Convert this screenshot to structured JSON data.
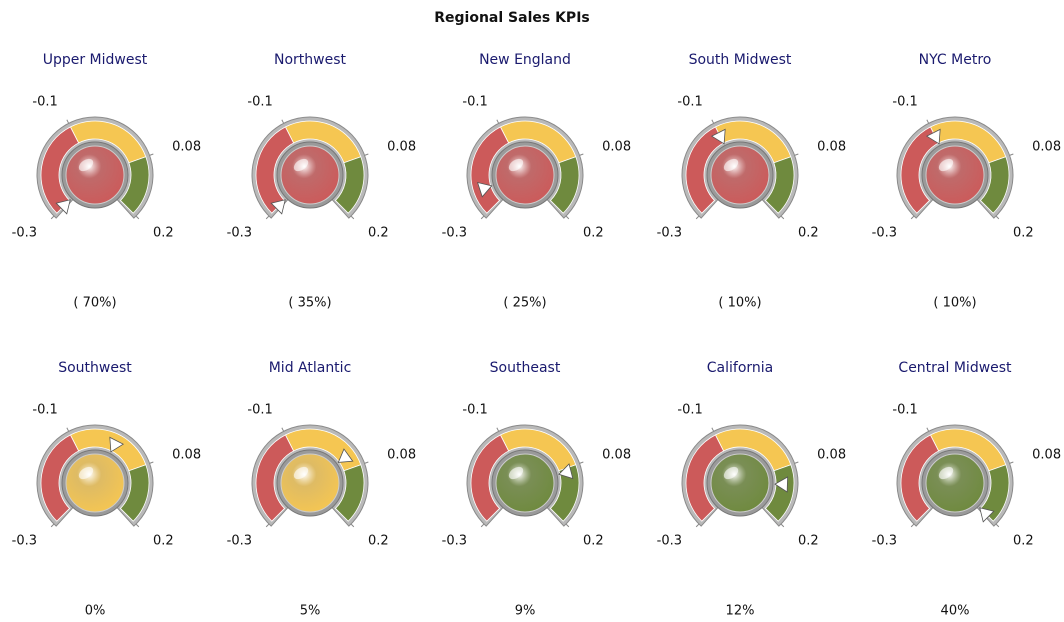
{
  "title": "Regional Sales KPIs",
  "chart_data": [
    {
      "type": "gauge",
      "title": "Upper Midwest",
      "value": -0.7,
      "value_label": "( 70%)",
      "lim": [
        -0.3,
        0.2
      ],
      "ticks": [
        -0.3,
        -0.1,
        0.08,
        0.2
      ],
      "bands": [
        {
          "from": -0.3,
          "to": -0.1,
          "color": "#cc5a5a"
        },
        {
          "from": -0.1,
          "to": 0.08,
          "color": "#f5c652"
        },
        {
          "from": 0.08,
          "to": 0.2,
          "color": "#6f8a3e"
        }
      ]
    },
    {
      "type": "gauge",
      "title": "Northwest",
      "value": -0.35,
      "value_label": "( 35%)",
      "lim": [
        -0.3,
        0.2
      ],
      "ticks": [
        -0.3,
        -0.1,
        0.08,
        0.2
      ],
      "bands": [
        {
          "from": -0.3,
          "to": -0.1,
          "color": "#cc5a5a"
        },
        {
          "from": -0.1,
          "to": 0.08,
          "color": "#f5c652"
        },
        {
          "from": 0.08,
          "to": 0.2,
          "color": "#6f8a3e"
        }
      ]
    },
    {
      "type": "gauge",
      "title": "New England",
      "value": -0.25,
      "value_label": "( 25%)",
      "lim": [
        -0.3,
        0.2
      ],
      "ticks": [
        -0.3,
        -0.1,
        0.08,
        0.2
      ],
      "bands": [
        {
          "from": -0.3,
          "to": -0.1,
          "color": "#cc5a5a"
        },
        {
          "from": -0.1,
          "to": 0.08,
          "color": "#f5c652"
        },
        {
          "from": 0.08,
          "to": 0.2,
          "color": "#6f8a3e"
        }
      ]
    },
    {
      "type": "gauge",
      "title": "South Midwest",
      "value": -0.1,
      "value_label": "( 10%)",
      "lim": [
        -0.3,
        0.2
      ],
      "ticks": [
        -0.3,
        -0.1,
        0.08,
        0.2
      ],
      "bands": [
        {
          "from": -0.3,
          "to": -0.1,
          "color": "#cc5a5a"
        },
        {
          "from": -0.1,
          "to": 0.08,
          "color": "#f5c652"
        },
        {
          "from": 0.08,
          "to": 0.2,
          "color": "#6f8a3e"
        }
      ]
    },
    {
      "type": "gauge",
      "title": "NYC Metro",
      "value": -0.1,
      "value_label": "( 10%)",
      "lim": [
        -0.3,
        0.2
      ],
      "ticks": [
        -0.3,
        -0.1,
        0.08,
        0.2
      ],
      "bands": [
        {
          "from": -0.3,
          "to": -0.1,
          "color": "#cc5a5a"
        },
        {
          "from": -0.1,
          "to": 0.08,
          "color": "#f5c652"
        },
        {
          "from": 0.08,
          "to": 0.2,
          "color": "#6f8a3e"
        }
      ]
    },
    {
      "type": "gauge",
      "title": "Southwest",
      "value": 0,
      "value_label": "0%",
      "lim": [
        -0.3,
        0.2
      ],
      "ticks": [
        -0.3,
        -0.1,
        0.08,
        0.2
      ],
      "bands": [
        {
          "from": -0.3,
          "to": -0.1,
          "color": "#cc5a5a"
        },
        {
          "from": -0.1,
          "to": 0.08,
          "color": "#f5c652"
        },
        {
          "from": 0.08,
          "to": 0.2,
          "color": "#6f8a3e"
        }
      ]
    },
    {
      "type": "gauge",
      "title": "Mid Atlantic",
      "value": 0.05,
      "value_label": "5%",
      "lim": [
        -0.3,
        0.2
      ],
      "ticks": [
        -0.3,
        -0.1,
        0.08,
        0.2
      ],
      "bands": [
        {
          "from": -0.3,
          "to": -0.1,
          "color": "#cc5a5a"
        },
        {
          "from": -0.1,
          "to": 0.08,
          "color": "#f5c652"
        },
        {
          "from": 0.08,
          "to": 0.2,
          "color": "#6f8a3e"
        }
      ]
    },
    {
      "type": "gauge",
      "title": "Southeast",
      "value": 0.09,
      "value_label": "9%",
      "lim": [
        -0.3,
        0.2
      ],
      "ticks": [
        -0.3,
        -0.1,
        0.08,
        0.2
      ],
      "bands": [
        {
          "from": -0.3,
          "to": -0.1,
          "color": "#cc5a5a"
        },
        {
          "from": -0.1,
          "to": 0.08,
          "color": "#f5c652"
        },
        {
          "from": 0.08,
          "to": 0.2,
          "color": "#6f8a3e"
        }
      ]
    },
    {
      "type": "gauge",
      "title": "California",
      "value": 0.12,
      "value_label": "12%",
      "lim": [
        -0.3,
        0.2
      ],
      "ticks": [
        -0.3,
        -0.1,
        0.08,
        0.2
      ],
      "bands": [
        {
          "from": -0.3,
          "to": -0.1,
          "color": "#cc5a5a"
        },
        {
          "from": -0.1,
          "to": 0.08,
          "color": "#f5c652"
        },
        {
          "from": 0.08,
          "to": 0.2,
          "color": "#6f8a3e"
        }
      ]
    },
    {
      "type": "gauge",
      "title": "Central Midwest",
      "value": 0.4,
      "value_label": "40%",
      "lim": [
        -0.3,
        0.2
      ],
      "ticks": [
        -0.3,
        -0.1,
        0.08,
        0.2
      ],
      "bands": [
        {
          "from": -0.3,
          "to": -0.1,
          "color": "#cc5a5a"
        },
        {
          "from": -0.1,
          "to": 0.08,
          "color": "#f5c652"
        },
        {
          "from": 0.08,
          "to": 0.2,
          "color": "#6f8a3e"
        }
      ]
    }
  ]
}
